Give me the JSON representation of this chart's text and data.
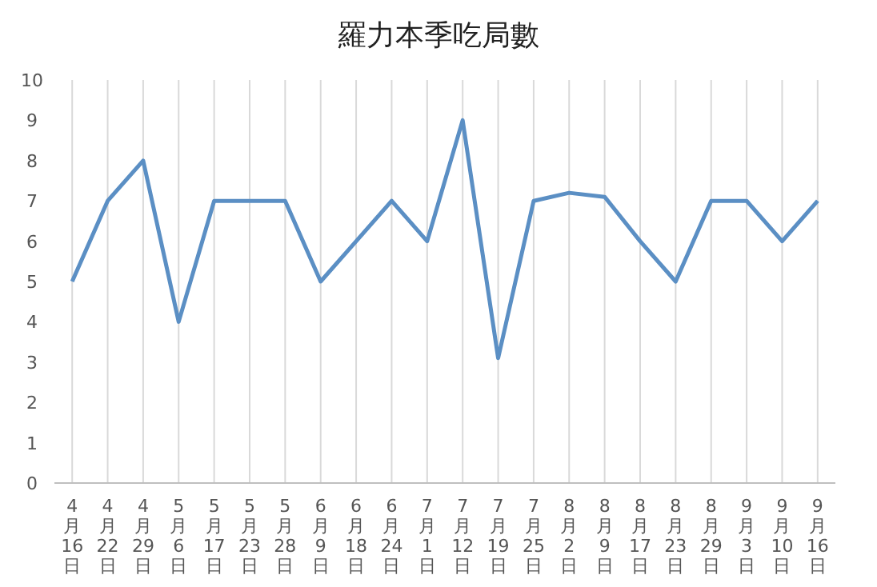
{
  "chart_data": {
    "type": "line",
    "title": "羅力本季吃局數",
    "categories": [
      "4月16日",
      "4月22日",
      "4月29日",
      "5月6日",
      "5月17日",
      "5月23日",
      "5月28日",
      "6月9日",
      "6月18日",
      "6月24日",
      "7月1日",
      "7月12日",
      "7月19日",
      "7月25日",
      "8月2日",
      "8月9日",
      "8月17日",
      "8月23日",
      "8月29日",
      "9月3日",
      "9月10日",
      "9月16日"
    ],
    "values": [
      5,
      7,
      8,
      4,
      7,
      7,
      7,
      5,
      6,
      7,
      6,
      9,
      3.1,
      7,
      7.2,
      7.1,
      6,
      5,
      7,
      7,
      6,
      7
    ],
    "color": "#5b8fc4",
    "ylim": [
      0,
      10
    ],
    "yticks": [
      0,
      1,
      2,
      3,
      4,
      5,
      6,
      7,
      8,
      9,
      10
    ],
    "grid": "x"
  }
}
